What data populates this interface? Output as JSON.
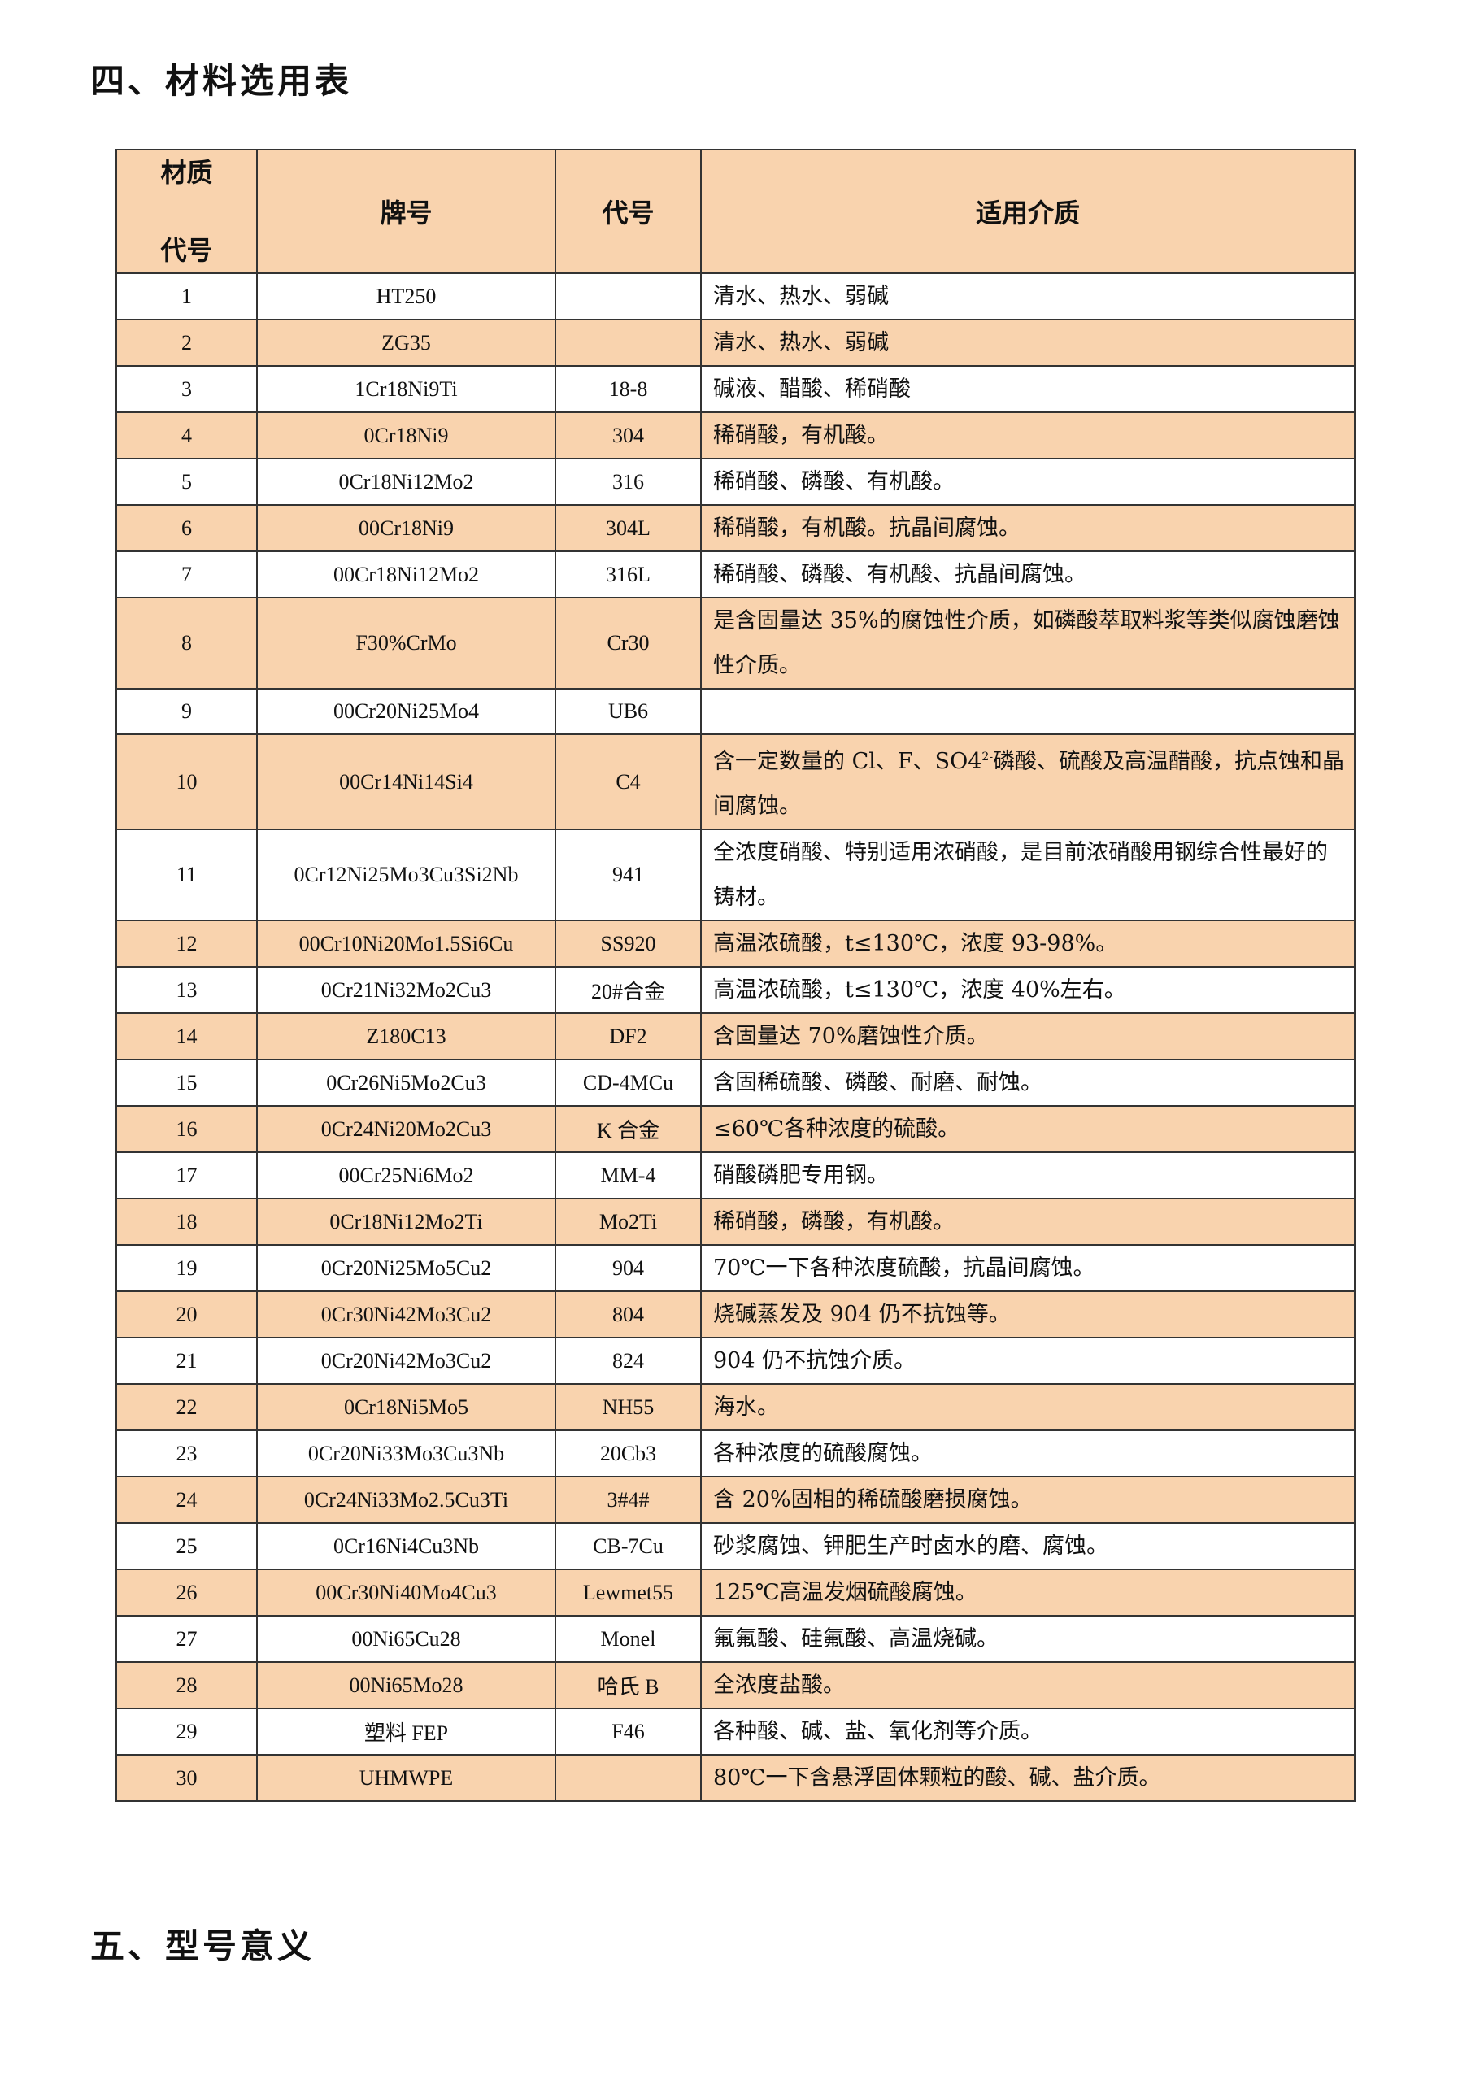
{
  "section4_title": "四、材料选用表",
  "section5_title": "五、型号意义",
  "table": {
    "headers": [
      "材质代号",
      "牌号",
      "代号",
      "适用介质"
    ],
    "header_col0_lines": [
      "材质",
      "代号"
    ],
    "rows": [
      {
        "no": "1",
        "grade": "HT250",
        "code": "",
        "media": "清水、热水、弱碱"
      },
      {
        "no": "2",
        "grade": "ZG35",
        "code": "",
        "media": "清水、热水、弱碱"
      },
      {
        "no": "3",
        "grade": "1Cr18Ni9Ti",
        "code": "18-8",
        "media": "碱液、醋酸、稀硝酸"
      },
      {
        "no": "4",
        "grade": "0Cr18Ni9",
        "code": "304",
        "media": "稀硝酸，有机酸。"
      },
      {
        "no": "5",
        "grade": "0Cr18Ni12Mo2",
        "code": "316",
        "media": "稀硝酸、磷酸、有机酸。"
      },
      {
        "no": "6",
        "grade": "00Cr18Ni9",
        "code": "304L",
        "media": "稀硝酸，有机酸。抗晶间腐蚀。"
      },
      {
        "no": "7",
        "grade": "00Cr18Ni12Mo2",
        "code": "316L",
        "media": "稀硝酸、磷酸、有机酸、抗晶间腐蚀。"
      },
      {
        "no": "8",
        "grade": "F30%CrMo",
        "code": "Cr30",
        "media": "是含固量达 35%的腐蚀性介质，如磷酸萃取料浆等类似腐蚀磨蚀性介质。"
      },
      {
        "no": "9",
        "grade": "00Cr20Ni25Mo4",
        "code": "UB6",
        "media": ""
      },
      {
        "no": "10",
        "grade": "00Cr14Ni14Si4",
        "code": "C4",
        "media_pre": "含一定数量的 Cl、F、SO4",
        "media_sup": "2-",
        "media_post": "磷酸、硫酸及高温醋酸，抗点蚀和晶间腐蚀。"
      },
      {
        "no": "11",
        "grade": "0Cr12Ni25Mo3Cu3Si2Nb",
        "code": "941",
        "media": "全浓度硝酸、特别适用浓硝酸，是目前浓硝酸用钢综合性最好的铸材。"
      },
      {
        "no": "12",
        "grade": "00Cr10Ni20Mo1.5Si6Cu",
        "code": "SS920",
        "media": "高温浓硫酸，t≤130℃，浓度 93-98%。"
      },
      {
        "no": "13",
        "grade": "0Cr21Ni32Mo2Cu3",
        "code": "20#合金",
        "media": "高温浓硫酸，t≤130℃，浓度 40%左右。"
      },
      {
        "no": "14",
        "grade": "Z180C13",
        "code": "DF2",
        "media": "含固量达 70%磨蚀性介质。"
      },
      {
        "no": "15",
        "grade": "0Cr26Ni5Mo2Cu3",
        "code": "CD-4MCu",
        "media": "含固稀硫酸、磷酸、耐磨、耐蚀。"
      },
      {
        "no": "16",
        "grade": "0Cr24Ni20Mo2Cu3",
        "code": "K 合金",
        "media": "≤60℃各种浓度的硫酸。"
      },
      {
        "no": "17",
        "grade": "00Cr25Ni6Mo2",
        "code": "MM-4",
        "media": "硝酸磷肥专用钢。"
      },
      {
        "no": "18",
        "grade": "0Cr18Ni12Mo2Ti",
        "code": "Mo2Ti",
        "media": "稀硝酸，磷酸，有机酸。"
      },
      {
        "no": "19",
        "grade": "0Cr20Ni25Mo5Cu2",
        "code": "904",
        "media": "70℃一下各种浓度硫酸，抗晶间腐蚀。"
      },
      {
        "no": "20",
        "grade": "0Cr30Ni42Mo3Cu2",
        "code": "804",
        "media": "烧碱蒸发及 904 仍不抗蚀等。"
      },
      {
        "no": "21",
        "grade": "0Cr20Ni42Mo3Cu2",
        "code": "824",
        "media": "904 仍不抗蚀介质。"
      },
      {
        "no": "22",
        "grade": "0Cr18Ni5Mo5",
        "code": "NH55",
        "media": "海水。"
      },
      {
        "no": "23",
        "grade": "0Cr20Ni33Mo3Cu3Nb",
        "code": "20Cb3",
        "media": "各种浓度的硫酸腐蚀。"
      },
      {
        "no": "24",
        "grade": "0Cr24Ni33Mo2.5Cu3Ti",
        "code": "3#4#",
        "media": "含 20%固相的稀硫酸磨损腐蚀。"
      },
      {
        "no": "25",
        "grade": "0Cr16Ni4Cu3Nb",
        "code": "CB-7Cu",
        "media": "砂浆腐蚀、钾肥生产时卤水的磨、腐蚀。"
      },
      {
        "no": "26",
        "grade": "00Cr30Ni40Mo4Cu3",
        "code": "Lewmet55",
        "media": "125℃高温发烟硫酸腐蚀。"
      },
      {
        "no": "27",
        "grade": "00Ni65Cu28",
        "code": "Monel",
        "media": "氟氟酸、硅氟酸、高温烧碱。"
      },
      {
        "no": "28",
        "grade": "00Ni65Mo28",
        "code": "哈氏 B",
        "media": "全浓度盐酸。"
      },
      {
        "no": "29",
        "grade": "塑料 FEP",
        "code": "F46",
        "media": "各种酸、碱、盐、氧化剂等介质。"
      },
      {
        "no": "30",
        "grade": "UHMWPE",
        "code": "",
        "media": "80℃一下含悬浮固体颗粒的酸、碱、盐介质。"
      }
    ]
  },
  "colors": {
    "header_bg": "#F9D3AE",
    "alt_row_bg": "#F9D3AE",
    "border": "#333333"
  }
}
